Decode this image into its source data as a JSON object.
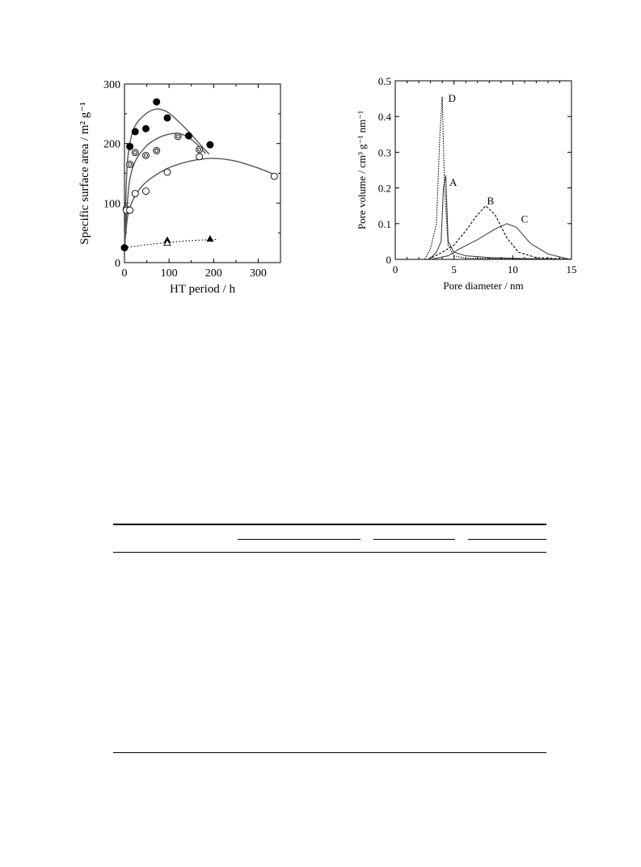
{
  "chart_data": [
    {
      "type": "scatter",
      "title": "",
      "xlabel": "HT period / h",
      "ylabel": "Specific surface area / m² g⁻¹",
      "xlim": [
        0,
        350
      ],
      "ylim": [
        0,
        300
      ],
      "xticks": [
        0,
        100,
        200,
        300
      ],
      "yticks": [
        0,
        100,
        200,
        300
      ],
      "grid": false,
      "legend": "none",
      "series": [
        {
          "marker": "filled-circle",
          "points": [
            [
              0,
              25
            ],
            [
              12,
              195
            ],
            [
              24,
              220
            ],
            [
              48,
              225
            ],
            [
              72,
              270
            ],
            [
              96,
              243
            ],
            [
              144,
              213
            ],
            [
              192,
              198
            ]
          ],
          "fit": [
            [
              0,
              25
            ],
            [
              5,
              150
            ],
            [
              12,
              200
            ],
            [
              24,
              230
            ],
            [
              48,
              250
            ],
            [
              72,
              258
            ],
            [
              96,
              253
            ],
            [
              120,
              238
            ],
            [
              144,
              220
            ],
            [
              168,
              200
            ],
            [
              190,
              182
            ]
          ]
        },
        {
          "marker": "double-circle",
          "points": [
            [
              4,
              90
            ],
            [
              12,
              165
            ],
            [
              24,
              185
            ],
            [
              48,
              180
            ],
            [
              72,
              188
            ],
            [
              120,
              212
            ],
            [
              168,
              190
            ]
          ],
          "fit": [
            [
              0,
              25
            ],
            [
              6,
              95
            ],
            [
              12,
              140
            ],
            [
              24,
              170
            ],
            [
              48,
              195
            ],
            [
              72,
              208
            ],
            [
              96,
              215
            ],
            [
              120,
              217
            ],
            [
              144,
              210
            ],
            [
              168,
              195
            ],
            [
              182,
              183
            ]
          ]
        },
        {
          "marker": "open-circle",
          "points": [
            [
              4,
              88
            ],
            [
              12,
              88
            ],
            [
              24,
              116
            ],
            [
              48,
              120
            ],
            [
              96,
              152
            ],
            [
              168,
              178
            ],
            [
              336,
              145
            ]
          ],
          "fit": [
            [
              0,
              25
            ],
            [
              6,
              72
            ],
            [
              12,
              92
            ],
            [
              24,
              112
            ],
            [
              48,
              135
            ],
            [
              96,
              158
            ],
            [
              144,
              170
            ],
            [
              192,
              175
            ],
            [
              240,
              172
            ],
            [
              288,
              162
            ],
            [
              340,
              147
            ]
          ]
        },
        {
          "marker": "filled-triangle",
          "points": [
            [
              96,
              38
            ],
            [
              192,
              40
            ]
          ]
        },
        {
          "marker": "open-triangle",
          "points": [
            [
              96,
              33
            ]
          ]
        }
      ],
      "trend_dotted": [
        [
          0,
          25
        ],
        [
          50,
          30
        ],
        [
          100,
          34
        ],
        [
          150,
          37
        ],
        [
          210,
          39
        ]
      ]
    },
    {
      "type": "line",
      "title": "",
      "xlabel": "Pore diameter / nm",
      "ylabel": "Pore volume / cm³ g⁻¹ nm⁻¹",
      "xlim": [
        0,
        15
      ],
      "ylim": [
        0,
        0.5
      ],
      "xticks": [
        0,
        5,
        10,
        15
      ],
      "xtick_labels": [
        "0",
        "5",
        "10",
        "15"
      ],
      "yticks": [
        0,
        0.1,
        0.2,
        0.3,
        0.4,
        0.5
      ],
      "ytick_labels": [
        "0",
        "0.1",
        "0.2",
        "0.3",
        "0.4",
        "0.5"
      ],
      "grid": false,
      "legend": "none",
      "series": [
        {
          "name": "A",
          "style": "solid",
          "label_at": [
            4.4,
            0.215
          ],
          "points": [
            [
              2.9,
              0
            ],
            [
              3.2,
              0.01
            ],
            [
              3.5,
              0.02
            ],
            [
              3.9,
              0.05
            ],
            [
              4.1,
              0.2
            ],
            [
              4.3,
              0.235
            ],
            [
              4.5,
              0.05
            ],
            [
              5,
              0.02
            ],
            [
              6,
              0.01
            ],
            [
              8,
              0.005
            ],
            [
              11,
              0.002
            ],
            [
              15,
              0
            ]
          ]
        },
        {
          "name": "B",
          "style": "dashed",
          "label_at": [
            7.6,
            0.163
          ],
          "points": [
            [
              2.8,
              0
            ],
            [
              4,
              0.02
            ],
            [
              5,
              0.04
            ],
            [
              6,
              0.08
            ],
            [
              7,
              0.125
            ],
            [
              7.7,
              0.15
            ],
            [
              8.5,
              0.125
            ],
            [
              9.5,
              0.06
            ],
            [
              10.5,
              0.02
            ],
            [
              12,
              0.005
            ],
            [
              15,
              0
            ]
          ]
        },
        {
          "name": "C",
          "style": "solid",
          "label_at": [
            10.5,
            0.112
          ],
          "points": [
            [
              3,
              0
            ],
            [
              4.5,
              0.01
            ],
            [
              5.5,
              0.03
            ],
            [
              7,
              0.055
            ],
            [
              8.5,
              0.085
            ],
            [
              9.5,
              0.1
            ],
            [
              10.3,
              0.09
            ],
            [
              11.5,
              0.045
            ],
            [
              13,
              0.015
            ],
            [
              14.5,
              0.003
            ],
            [
              15,
              0
            ]
          ]
        },
        {
          "name": "D",
          "style": "dotted",
          "label_at": [
            4.3,
            0.45
          ],
          "points": [
            [
              2.5,
              0
            ],
            [
              3,
              0.03
            ],
            [
              3.5,
              0.1
            ],
            [
              3.8,
              0.35
            ],
            [
              4,
              0.455
            ],
            [
              4.2,
              0.2
            ],
            [
              4.5,
              0.04
            ],
            [
              5,
              0.01
            ],
            [
              6,
              0.003
            ],
            [
              15,
              0
            ]
          ]
        }
      ]
    }
  ]
}
